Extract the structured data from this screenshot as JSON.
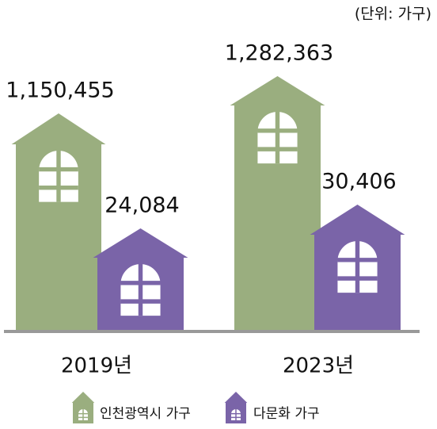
{
  "chart_data": {
    "type": "pictogram",
    "unit_note": "(단위: 가구)",
    "categories": [
      "2019년",
      "2023년"
    ],
    "series": [
      {
        "name": "인천광역시 가구",
        "color": "#9aae7f",
        "values": [
          1150455,
          1282363
        ],
        "value_labels": [
          "1,150,455",
          "1,282,363"
        ]
      },
      {
        "name": "다문화 가구",
        "color": "#7a64a8",
        "values": [
          24084,
          30406
        ],
        "value_labels": [
          "24,084",
          "30,406"
        ]
      }
    ]
  }
}
